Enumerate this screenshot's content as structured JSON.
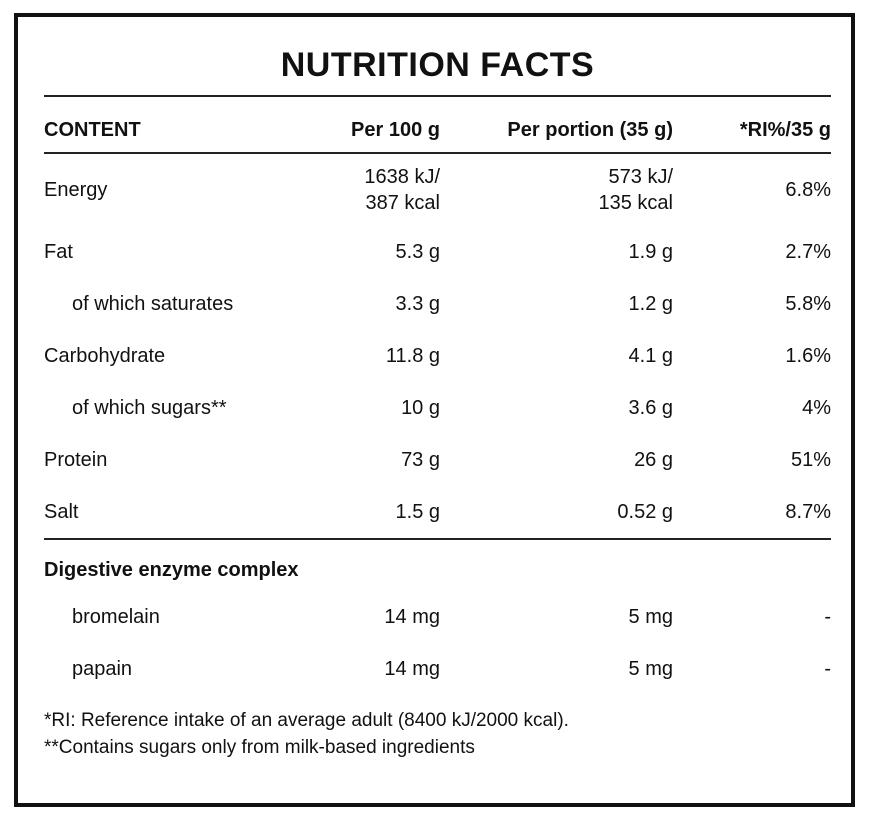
{
  "title": "NUTRITION FACTS",
  "table": {
    "headers": {
      "content": "CONTENT",
      "per100": "Per 100 g",
      "portion": "Per portion (35 g)",
      "ri": "*RI%/35 g"
    },
    "rows": [
      {
        "label": "Energy",
        "per100": "1638 kJ/\n387 kcal",
        "portion": "573 kJ/\n135 kcal",
        "ri": "6.8%"
      },
      {
        "label": "Fat",
        "per100": "5.3 g",
        "portion": "1.9 g",
        "ri": "2.7%"
      },
      {
        "label": "of which saturates",
        "per100": "3.3 g",
        "portion": "1.2 g",
        "ri": "5.8%"
      },
      {
        "label": "Carbohydrate",
        "per100": "11.8 g",
        "portion": "4.1 g",
        "ri": "1.6%"
      },
      {
        "label": "of which sugars**",
        "per100": "10 g",
        "portion": "3.6 g",
        "ri": "4%"
      },
      {
        "label": "Protein",
        "per100": "73 g",
        "portion": "26 g",
        "ri": "51%"
      },
      {
        "label": "Salt",
        "per100": "1.5 g",
        "portion": "0.52 g",
        "ri": "8.7%"
      }
    ]
  },
  "enzymes": {
    "heading": "Digestive enzyme complex",
    "rows": [
      {
        "label": "bromelain",
        "per100": "14 mg",
        "portion": "5 mg",
        "ri": "-"
      },
      {
        "label": "papain",
        "per100": "14 mg",
        "portion": "5 mg",
        "ri": "-"
      }
    ]
  },
  "footnotes": [
    "*RI: Reference intake of an average adult (8400 kJ/2000 kcal).",
    "**Contains sugars only from milk-based ingredients"
  ],
  "colors": {
    "text": "#111111",
    "border": "#111111",
    "rule": "#222222",
    "background": "#ffffff"
  }
}
